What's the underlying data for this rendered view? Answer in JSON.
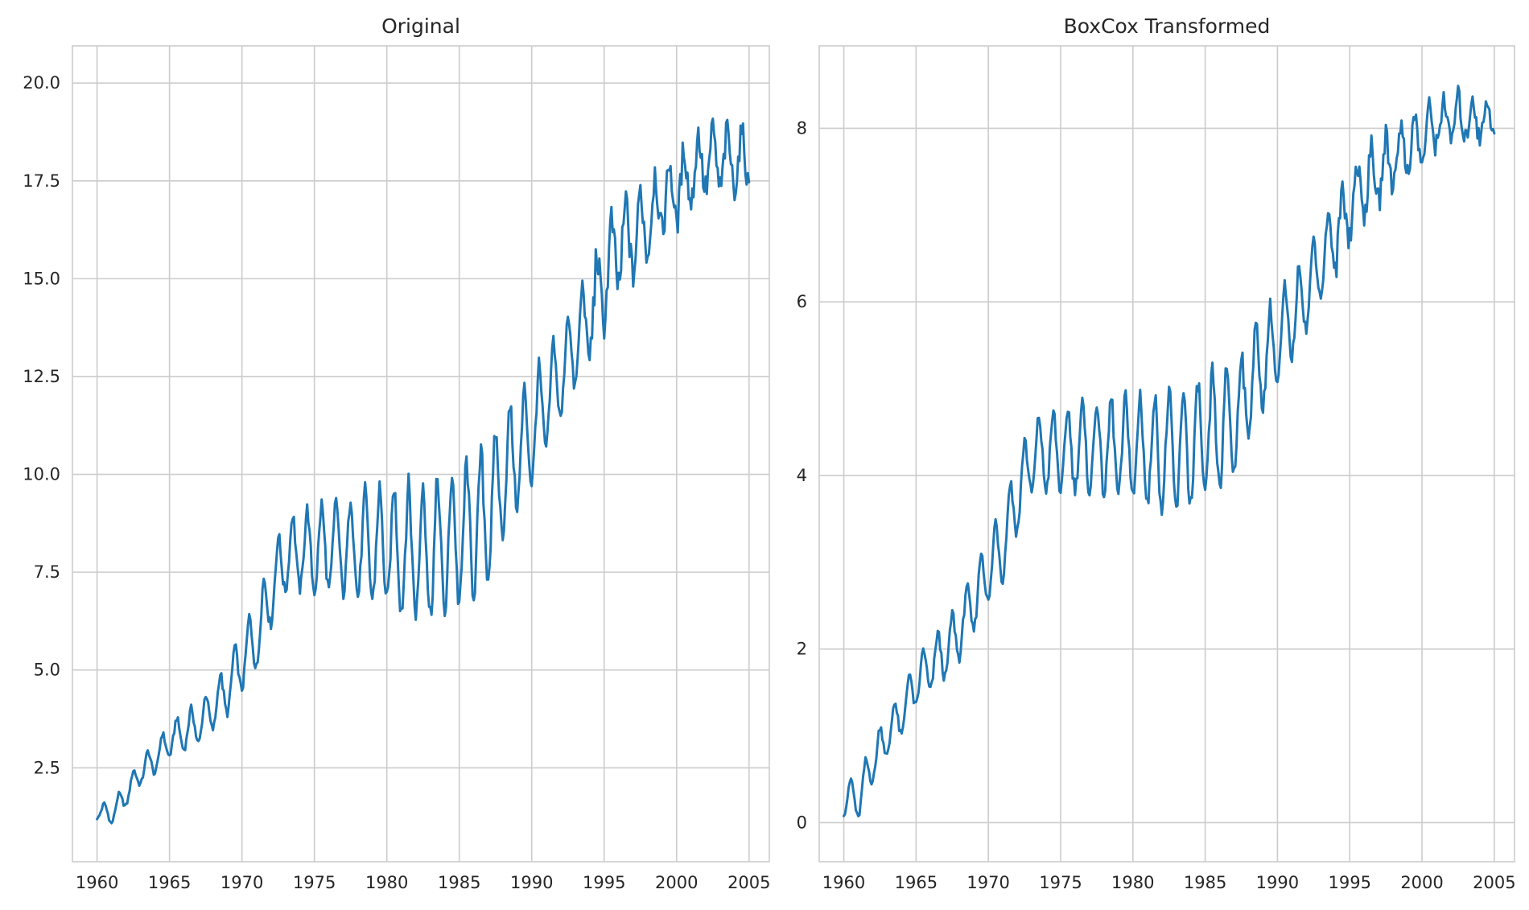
{
  "chart_data": [
    {
      "type": "line",
      "title": "Original",
      "xlabel": "",
      "ylabel": "",
      "x_range": [
        1958.3,
        2006.4
      ],
      "ylim": [
        0.1,
        20.95
      ],
      "x_ticks": [
        1960,
        1965,
        1970,
        1975,
        1980,
        1985,
        1990,
        1995,
        2000,
        2005
      ],
      "y_ticks": [
        2.5,
        5.0,
        7.5,
        10.0,
        12.5,
        15.0,
        17.5,
        20.0
      ],
      "y_tick_labels": [
        "2.5",
        "5.0",
        "7.5",
        "10.0",
        "12.5",
        "15.0",
        "17.5",
        "20.0"
      ],
      "grid": true,
      "line_color": "#1f77b4",
      "trend": [
        [
          1960.0,
          1.4
        ],
        [
          1961.0,
          1.3
        ],
        [
          1962.0,
          1.8
        ],
        [
          1963.0,
          2.4
        ],
        [
          1964.0,
          2.7
        ],
        [
          1965.0,
          3.2
        ],
        [
          1966.0,
          3.4
        ],
        [
          1967.0,
          3.6
        ],
        [
          1968.0,
          4.0
        ],
        [
          1969.0,
          4.5
        ],
        [
          1970.0,
          5.2
        ],
        [
          1971.0,
          5.8
        ],
        [
          1972.0,
          7.0
        ],
        [
          1973.0,
          7.9
        ],
        [
          1974.0,
          8.0
        ],
        [
          1975.0,
          8.0
        ],
        [
          1976.0,
          8.1
        ],
        [
          1977.0,
          8.1
        ],
        [
          1978.0,
          8.1
        ],
        [
          1979.0,
          8.1
        ],
        [
          1980.0,
          8.1
        ],
        [
          1981.0,
          8.0
        ],
        [
          1982.0,
          8.0
        ],
        [
          1983.0,
          8.0
        ],
        [
          1984.0,
          8.1
        ],
        [
          1985.0,
          8.3
        ],
        [
          1986.0,
          8.6
        ],
        [
          1987.0,
          8.9
        ],
        [
          1988.0,
          9.9
        ],
        [
          1989.0,
          10.5
        ],
        [
          1990.0,
          11.0
        ],
        [
          1991.0,
          11.8
        ],
        [
          1992.0,
          12.5
        ],
        [
          1993.0,
          13.3
        ],
        [
          1994.0,
          14.0
        ],
        [
          1995.0,
          14.9
        ],
        [
          1996.0,
          15.8
        ],
        [
          1997.0,
          16.0
        ],
        [
          1998.0,
          16.5
        ],
        [
          1999.0,
          17.0
        ],
        [
          2000.0,
          17.2
        ],
        [
          2001.0,
          17.7
        ],
        [
          2002.0,
          18.0
        ],
        [
          2003.0,
          18.0
        ],
        [
          2004.0,
          18.0
        ],
        [
          2005.0,
          18.0
        ]
      ],
      "seasonal_amplitude": [
        [
          1960.0,
          0.22
        ],
        [
          1964.0,
          0.4
        ],
        [
          1968.0,
          0.6
        ],
        [
          1971.0,
          0.9
        ],
        [
          1973.0,
          1.0
        ],
        [
          1977.0,
          1.3
        ],
        [
          1980.0,
          1.6
        ],
        [
          1983.0,
          1.85
        ],
        [
          1986.0,
          1.9
        ],
        [
          1988.0,
          1.6
        ],
        [
          1991.0,
          1.3
        ],
        [
          1995.0,
          1.15
        ],
        [
          2000.0,
          0.9
        ],
        [
          2005.0,
          0.75
        ]
      ]
    },
    {
      "type": "line",
      "title": "BoxCox Transformed",
      "xlabel": "",
      "ylabel": "",
      "x_range": [
        1958.3,
        2006.4
      ],
      "ylim": [
        -0.45,
        8.95
      ],
      "x_ticks": [
        1960,
        1965,
        1970,
        1975,
        1980,
        1985,
        1990,
        1995,
        2000,
        2005
      ],
      "y_ticks": [
        0,
        2,
        4,
        6,
        8
      ],
      "y_tick_labels": [
        "0",
        "2",
        "4",
        "6",
        "8"
      ],
      "grid": true,
      "line_color": "#1f77b4",
      "trend": [
        [
          1960.0,
          0.3
        ],
        [
          1961.0,
          0.25
        ],
        [
          1962.0,
          0.7
        ],
        [
          1963.0,
          1.0
        ],
        [
          1964.0,
          1.25
        ],
        [
          1965.0,
          1.6
        ],
        [
          1966.0,
          1.8
        ],
        [
          1967.0,
          1.95
        ],
        [
          1968.0,
          2.2
        ],
        [
          1969.0,
          2.55
        ],
        [
          1970.0,
          2.9
        ],
        [
          1971.0,
          3.2
        ],
        [
          1972.0,
          3.75
        ],
        [
          1973.0,
          4.2
        ],
        [
          1974.0,
          4.25
        ],
        [
          1975.0,
          4.25
        ],
        [
          1976.0,
          4.3
        ],
        [
          1977.0,
          4.3
        ],
        [
          1978.0,
          4.3
        ],
        [
          1979.0,
          4.3
        ],
        [
          1980.0,
          4.3
        ],
        [
          1981.0,
          4.25
        ],
        [
          1982.0,
          4.25
        ],
        [
          1983.0,
          4.25
        ],
        [
          1984.0,
          4.3
        ],
        [
          1985.0,
          4.4
        ],
        [
          1986.0,
          4.5
        ],
        [
          1987.0,
          4.6
        ],
        [
          1988.0,
          5.0
        ],
        [
          1989.0,
          5.3
        ],
        [
          1990.0,
          5.5
        ],
        [
          1991.0,
          5.8
        ],
        [
          1992.0,
          6.1
        ],
        [
          1993.0,
          6.45
        ],
        [
          1994.0,
          6.75
        ],
        [
          1995.0,
          7.1
        ],
        [
          1996.0,
          7.35
        ],
        [
          1997.0,
          7.45
        ],
        [
          1998.0,
          7.65
        ],
        [
          1999.0,
          7.8
        ],
        [
          2000.0,
          7.85
        ],
        [
          2001.0,
          8.05
        ],
        [
          2002.0,
          8.1
        ],
        [
          2003.0,
          8.1
        ],
        [
          2004.0,
          8.1
        ],
        [
          2005.0,
          8.1
        ]
      ],
      "seasonal_amplitude": [
        [
          1960.0,
          0.22
        ],
        [
          1964.0,
          0.28
        ],
        [
          1968.0,
          0.35
        ],
        [
          1971.0,
          0.45
        ],
        [
          1973.0,
          0.45
        ],
        [
          1977.0,
          0.55
        ],
        [
          1980.0,
          0.65
        ],
        [
          1983.0,
          0.75
        ],
        [
          1986.0,
          0.75
        ],
        [
          1988.0,
          0.6
        ],
        [
          1991.0,
          0.5
        ],
        [
          1995.0,
          0.4
        ],
        [
          2000.0,
          0.3
        ],
        [
          2005.0,
          0.25
        ]
      ]
    }
  ]
}
